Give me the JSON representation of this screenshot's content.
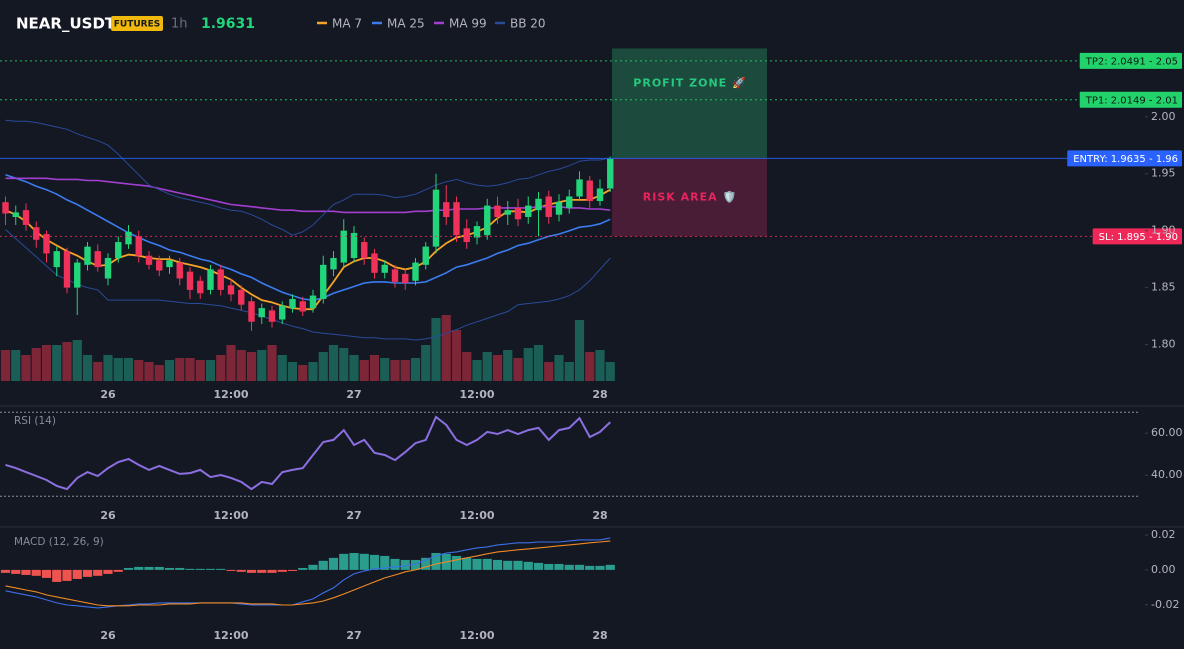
{
  "header": {
    "symbol": "NEAR_USDT",
    "badge": "FUTURES",
    "interval": "1h",
    "price": "1.9631"
  },
  "chart_data": [
    {
      "type": "candlestick",
      "categories": [
        null,
        null,
        null,
        null,
        null,
        null,
        null,
        null,
        null,
        null,
        "26",
        null,
        null,
        null,
        null,
        null,
        null,
        null,
        null,
        null,
        null,
        null,
        "12:00",
        null,
        null,
        null,
        null,
        null,
        null,
        null,
        null,
        null,
        null,
        null,
        "27",
        null,
        null,
        null,
        null,
        null,
        null,
        null,
        null,
        null,
        null,
        null,
        "12:00",
        null,
        null,
        null,
        null,
        null,
        null,
        null,
        null,
        null,
        null,
        null,
        "28",
        null
      ],
      "open": [
        1.925,
        1.912,
        1.918,
        1.903,
        1.897,
        1.868,
        1.882,
        1.85,
        1.87,
        1.882,
        1.858,
        1.876,
        1.888,
        1.895,
        1.878,
        1.874,
        1.868,
        1.872,
        1.864,
        1.856,
        1.848,
        1.866,
        1.852,
        1.848,
        1.838,
        1.824,
        1.83,
        1.822,
        1.832,
        1.838,
        1.832,
        1.84,
        1.866,
        1.872,
        1.876,
        1.89,
        1.88,
        1.863,
        1.866,
        1.862,
        1.856,
        1.87,
        1.886,
        1.925,
        1.925,
        1.902,
        1.894,
        1.896,
        1.922,
        1.914,
        1.92,
        1.912,
        1.918,
        1.93,
        1.914,
        1.92,
        1.93,
        1.944,
        1.926,
        1.937
      ],
      "high": [
        1.93,
        1.922,
        1.924,
        1.908,
        1.9,
        1.886,
        1.885,
        1.875,
        1.89,
        1.888,
        1.88,
        1.895,
        1.905,
        1.9,
        1.882,
        1.878,
        1.878,
        1.876,
        1.868,
        1.86,
        1.87,
        1.87,
        1.858,
        1.852,
        1.842,
        1.836,
        1.834,
        1.838,
        1.844,
        1.842,
        1.848,
        1.878,
        1.882,
        1.91,
        1.904,
        1.894,
        1.884,
        1.874,
        1.87,
        1.866,
        1.876,
        1.89,
        1.95,
        1.94,
        1.93,
        1.91,
        1.908,
        1.928,
        1.93,
        1.926,
        1.928,
        1.93,
        1.934,
        1.935,
        1.932,
        1.936,
        1.952,
        1.948,
        1.945,
        1.965
      ],
      "low": [
        1.905,
        1.905,
        1.9,
        1.885,
        1.872,
        1.86,
        1.845,
        1.826,
        1.865,
        1.864,
        1.852,
        1.872,
        1.884,
        1.872,
        1.866,
        1.86,
        1.862,
        1.852,
        1.84,
        1.84,
        1.844,
        1.843,
        1.838,
        1.83,
        1.812,
        1.818,
        1.815,
        1.818,
        1.828,
        1.825,
        1.828,
        1.836,
        1.86,
        1.868,
        1.872,
        1.87,
        1.858,
        1.858,
        1.85,
        1.848,
        1.852,
        1.866,
        1.88,
        1.905,
        1.89,
        1.884,
        1.888,
        1.892,
        1.906,
        1.905,
        1.904,
        1.906,
        1.895,
        1.906,
        1.908,
        1.915,
        1.926,
        1.92,
        1.922,
        1.934
      ],
      "close": [
        1.915,
        1.916,
        1.905,
        1.892,
        1.88,
        1.882,
        1.85,
        1.872,
        1.886,
        1.868,
        1.876,
        1.89,
        1.899,
        1.878,
        1.87,
        1.865,
        1.874,
        1.858,
        1.848,
        1.845,
        1.866,
        1.848,
        1.844,
        1.835,
        1.82,
        1.832,
        1.82,
        1.834,
        1.84,
        1.829,
        1.843,
        1.87,
        1.876,
        1.9,
        1.898,
        1.876,
        1.863,
        1.87,
        1.855,
        1.854,
        1.872,
        1.886,
        1.936,
        1.912,
        1.896,
        1.89,
        1.904,
        1.922,
        1.912,
        1.918,
        1.91,
        1.922,
        1.928,
        1.912,
        1.925,
        1.93,
        1.945,
        1.926,
        1.937,
        1.9631
      ],
      "up_color": "#22d47a",
      "down_color": "#f0325a",
      "volume": {
        "values": [
          31,
          31,
          26,
          33,
          36,
          36,
          39,
          41,
          26,
          19,
          26,
          23,
          23,
          21,
          19,
          16,
          21,
          23,
          23,
          21,
          21,
          26,
          36,
          31,
          29,
          31,
          36,
          26,
          19,
          16,
          19,
          29,
          36,
          33,
          26,
          21,
          26,
          23,
          21,
          21,
          23,
          36,
          63,
          66,
          51,
          29,
          21,
          29,
          26,
          31,
          23,
          33,
          36,
          19,
          26,
          19,
          61,
          29,
          31,
          19
        ],
        "ylim": [
          0,
          100
        ],
        "up_color": "#1b5e56",
        "down_color": "#7c2638"
      },
      "series": [
        {
          "name": "MA 7",
          "color": "#f7a325",
          "values": [
            1.918,
            1.914,
            1.908,
            1.899,
            1.892,
            1.887,
            1.882,
            1.878,
            1.873,
            1.869,
            1.87,
            1.876,
            1.879,
            1.878,
            1.876,
            1.875,
            1.875,
            1.872,
            1.87,
            1.868,
            1.865,
            1.861,
            1.857,
            1.85,
            1.844,
            1.839,
            1.837,
            1.834,
            1.832,
            1.831,
            1.831,
            1.843,
            1.855,
            1.868,
            1.873,
            1.876,
            1.876,
            1.873,
            1.868,
            1.866,
            1.868,
            1.873,
            1.882,
            1.889,
            1.894,
            1.896,
            1.899,
            1.903,
            1.911,
            1.917,
            1.917,
            1.916,
            1.92,
            1.923,
            1.925,
            1.927,
            1.927,
            1.927,
            1.931,
            1.936
          ]
        },
        {
          "name": "MA 25",
          "color": "#3b7cf0",
          "values": [
            1.949,
            1.946,
            1.943,
            1.939,
            1.936,
            1.932,
            1.927,
            1.923,
            1.918,
            1.913,
            1.908,
            1.903,
            1.898,
            1.894,
            1.89,
            1.887,
            1.883,
            1.881,
            1.878,
            1.875,
            1.873,
            1.869,
            1.866,
            1.862,
            1.859,
            1.854,
            1.85,
            1.846,
            1.843,
            1.84,
            1.839,
            1.841,
            1.845,
            1.848,
            1.851,
            1.854,
            1.855,
            1.855,
            1.854,
            1.854,
            1.854,
            1.855,
            1.859,
            1.863,
            1.868,
            1.87,
            1.873,
            1.876,
            1.88,
            1.883,
            1.887,
            1.889,
            1.892,
            1.895,
            1.897,
            1.9,
            1.903,
            1.904,
            1.906,
            1.91
          ]
        },
        {
          "name": "MA 99",
          "color": "#a33fd0",
          "values": [
            1.946,
            1.946,
            1.946,
            1.946,
            1.946,
            1.945,
            1.945,
            1.945,
            1.944,
            1.944,
            1.943,
            1.942,
            1.941,
            1.94,
            1.939,
            1.937,
            1.935,
            1.933,
            1.931,
            1.929,
            1.927,
            1.925,
            1.923,
            1.922,
            1.921,
            1.92,
            1.919,
            1.918,
            1.918,
            1.917,
            1.917,
            1.917,
            1.917,
            1.916,
            1.916,
            1.916,
            1.916,
            1.916,
            1.916,
            1.916,
            1.917,
            1.917,
            1.918,
            1.918,
            1.919,
            1.919,
            1.919,
            1.92,
            1.92,
            1.92,
            1.92,
            1.92,
            1.921,
            1.921,
            1.921,
            1.92,
            1.92,
            1.919,
            1.919,
            1.918
          ]
        },
        {
          "name": "BB 20",
          "color": "#2a4a9a",
          "upper": [
            1.997,
            1.996,
            1.996,
            1.995,
            1.993,
            1.991,
            1.989,
            1.985,
            1.982,
            1.979,
            1.975,
            1.967,
            1.958,
            1.949,
            1.94,
            1.936,
            1.932,
            1.929,
            1.927,
            1.925,
            1.923,
            1.92,
            1.918,
            1.917,
            1.914,
            1.91,
            1.905,
            1.901,
            1.896,
            1.899,
            1.905,
            1.914,
            1.923,
            1.927,
            1.932,
            1.932,
            1.932,
            1.931,
            1.929,
            1.93,
            1.932,
            1.936,
            1.94,
            1.943,
            1.945,
            1.942,
            1.94,
            1.939,
            1.94,
            1.942,
            1.945,
            1.946,
            1.949,
            1.952,
            1.954,
            1.957,
            1.961,
            1.962,
            1.962,
            1.964
          ],
          "lower": [
            1.901,
            1.893,
            1.885,
            1.877,
            1.869,
            1.861,
            1.857,
            1.853,
            1.85,
            1.848,
            1.839,
            1.839,
            1.839,
            1.839,
            1.839,
            1.839,
            1.838,
            1.837,
            1.836,
            1.836,
            1.835,
            1.834,
            1.832,
            1.83,
            1.828,
            1.825,
            1.822,
            1.819,
            1.816,
            1.814,
            1.811,
            1.81,
            1.809,
            1.808,
            1.807,
            1.806,
            1.806,
            1.805,
            1.805,
            1.805,
            1.804,
            1.805,
            1.807,
            1.81,
            1.813,
            1.817,
            1.82,
            1.823,
            1.826,
            1.829,
            1.835,
            1.836,
            1.837,
            1.838,
            1.84,
            1.843,
            1.848,
            1.856,
            1.866,
            1.876
          ]
        }
      ],
      "ylim": [
        1.768,
        2.063
      ],
      "yticks": [
        {
          "value": 1.8,
          "label": "1.80"
        },
        {
          "value": 1.85,
          "label": "1.85"
        },
        {
          "value": 1.9,
          "label": "1.90"
        },
        {
          "value": 1.95,
          "label": "1.95"
        },
        {
          "value": 2.0,
          "label": "2.00"
        }
      ],
      "levels": [
        {
          "label": "TP2: 2.0491 - 2.05",
          "value": 2.0491,
          "color": "#22d36b",
          "text_color": "#0d1a12",
          "style": "dotted"
        },
        {
          "label": "TP1: 2.0149 - 2.01",
          "value": 2.0149,
          "color": "#22d36b",
          "text_color": "#0d1a12",
          "style": "dotted"
        },
        {
          "label": "ENTRY: 1.9635 - 1.96",
          "value": 1.9635,
          "color": "#2962ff",
          "text_color": "#ffffff",
          "style": "solid"
        },
        {
          "label": "SL: 1.895 - 1.90",
          "value": 1.895,
          "color": "#f0285a",
          "text_color": "#ffffff",
          "style": "dotted"
        }
      ],
      "zones": [
        {
          "label": "PROFIT ZONE 🚀",
          "top": 2.06,
          "bottom": 1.9635,
          "color": "#1c4a3c",
          "text_color": "#26c97f"
        },
        {
          "label": "RISK AREA 🛡️",
          "top": 1.9635,
          "bottom": 1.895,
          "color": "#4a1d36",
          "text_color": "#e8245e"
        }
      ]
    },
    {
      "type": "line",
      "title": "RSI (14)",
      "color": "#8b6fe0",
      "values": [
        44.9,
        43.4,
        41.5,
        39.6,
        37.7,
        34.9,
        33.4,
        38.7,
        41.5,
        39.6,
        43.4,
        46.3,
        47.7,
        44.9,
        42.5,
        44.4,
        42.5,
        40.6,
        41.0,
        42.5,
        39.1,
        40.1,
        38.7,
        36.8,
        33.4,
        36.8,
        35.8,
        41.5,
        42.5,
        43.4,
        49.6,
        55.8,
        56.8,
        61.5,
        54.4,
        56.8,
        50.6,
        49.6,
        47.2,
        51.0,
        55.3,
        56.8,
        67.7,
        63.9,
        56.8,
        54.4,
        56.8,
        60.6,
        59.6,
        61.5,
        59.6,
        61.5,
        62.5,
        56.8,
        61.5,
        62.5,
        67.2,
        58.2,
        60.6,
        65.3
      ],
      "ylim": [
        22,
        72
      ],
      "yticks": [
        {
          "value": 60,
          "label": "60.00"
        },
        {
          "value": 40,
          "label": "40.00"
        }
      ],
      "levels": [
        70,
        30
      ]
    },
    {
      "type": "macd",
      "title": "MACD (12, 26, 9)",
      "series": [
        {
          "color": "#3d6fe8",
          "values": [
            -0.012,
            -0.0132,
            -0.0143,
            -0.0155,
            -0.0172,
            -0.0189,
            -0.0201,
            -0.0206,
            -0.0212,
            -0.0218,
            -0.0212,
            -0.0206,
            -0.0201,
            -0.0195,
            -0.0195,
            -0.0189,
            -0.0189,
            -0.0189,
            -0.0189,
            -0.0189,
            -0.0189,
            -0.0189,
            -0.0189,
            -0.0195,
            -0.0201,
            -0.0201,
            -0.0201,
            -0.0201,
            -0.0201,
            -0.0183,
            -0.0166,
            -0.0132,
            -0.0103,
            -0.0057,
            -0.0023,
            -0.0006,
            0.0006,
            0.0011,
            0.0017,
            0.0023,
            0.0034,
            0.0057,
            0.008,
            0.0097,
            0.0103,
            0.0115,
            0.0126,
            0.0132,
            0.0143,
            0.0149,
            0.0155,
            0.0155,
            0.016,
            0.016,
            0.016,
            0.0166,
            0.0172,
            0.0172,
            0.0172,
            0.0183
          ]
        },
        {
          "color": "#f08a24",
          "values": [
            -0.0092,
            -0.0103,
            -0.0115,
            -0.0126,
            -0.0143,
            -0.0155,
            -0.0166,
            -0.0178,
            -0.0189,
            -0.0201,
            -0.0206,
            -0.0206,
            -0.0206,
            -0.0201,
            -0.0201,
            -0.0201,
            -0.0195,
            -0.0195,
            -0.0195,
            -0.0189,
            -0.0189,
            -0.0189,
            -0.0189,
            -0.0189,
            -0.0195,
            -0.0195,
            -0.0195,
            -0.0201,
            -0.0201,
            -0.0195,
            -0.0189,
            -0.0178,
            -0.016,
            -0.0138,
            -0.0115,
            -0.0092,
            -0.0069,
            -0.0046,
            -0.0029,
            -0.0011,
            0.0,
            0.0017,
            0.0034,
            0.0046,
            0.0057,
            0.0069,
            0.008,
            0.0092,
            0.0103,
            0.0109,
            0.0115,
            0.012,
            0.0126,
            0.0132,
            0.0138,
            0.0143,
            0.0149,
            0.0155,
            0.016,
            0.0166
          ]
        }
      ],
      "histogram": {
        "values": [
          -0.0017,
          -0.0023,
          -0.0029,
          -0.0034,
          -0.0046,
          -0.0069,
          -0.0063,
          -0.0052,
          -0.004,
          -0.0034,
          -0.0023,
          -0.0011,
          0.0011,
          0.0017,
          0.0017,
          0.0017,
          0.0011,
          0.0011,
          0.0006,
          0.0006,
          0.0006,
          0.0006,
          -0.0006,
          -0.0011,
          -0.0017,
          -0.0017,
          -0.0017,
          -0.0011,
          -0.0006,
          0.0011,
          0.0029,
          0.0052,
          0.0069,
          0.0092,
          0.0097,
          0.0092,
          0.0086,
          0.008,
          0.0063,
          0.0057,
          0.0057,
          0.0069,
          0.0097,
          0.0092,
          0.008,
          0.0069,
          0.0063,
          0.0063,
          0.0057,
          0.0052,
          0.0052,
          0.0046,
          0.004,
          0.0034,
          0.0034,
          0.0029,
          0.0029,
          0.0023,
          0.0023,
          0.0029
        ],
        "up_color": "#2a9d8f",
        "down_color": "#ef5350"
      },
      "ylim": [
        -0.031,
        0.024
      ],
      "yticks": [
        0.02,
        {
          "value": 0,
          "label": "0.00"
        },
        -0.02
      ]
    }
  ]
}
